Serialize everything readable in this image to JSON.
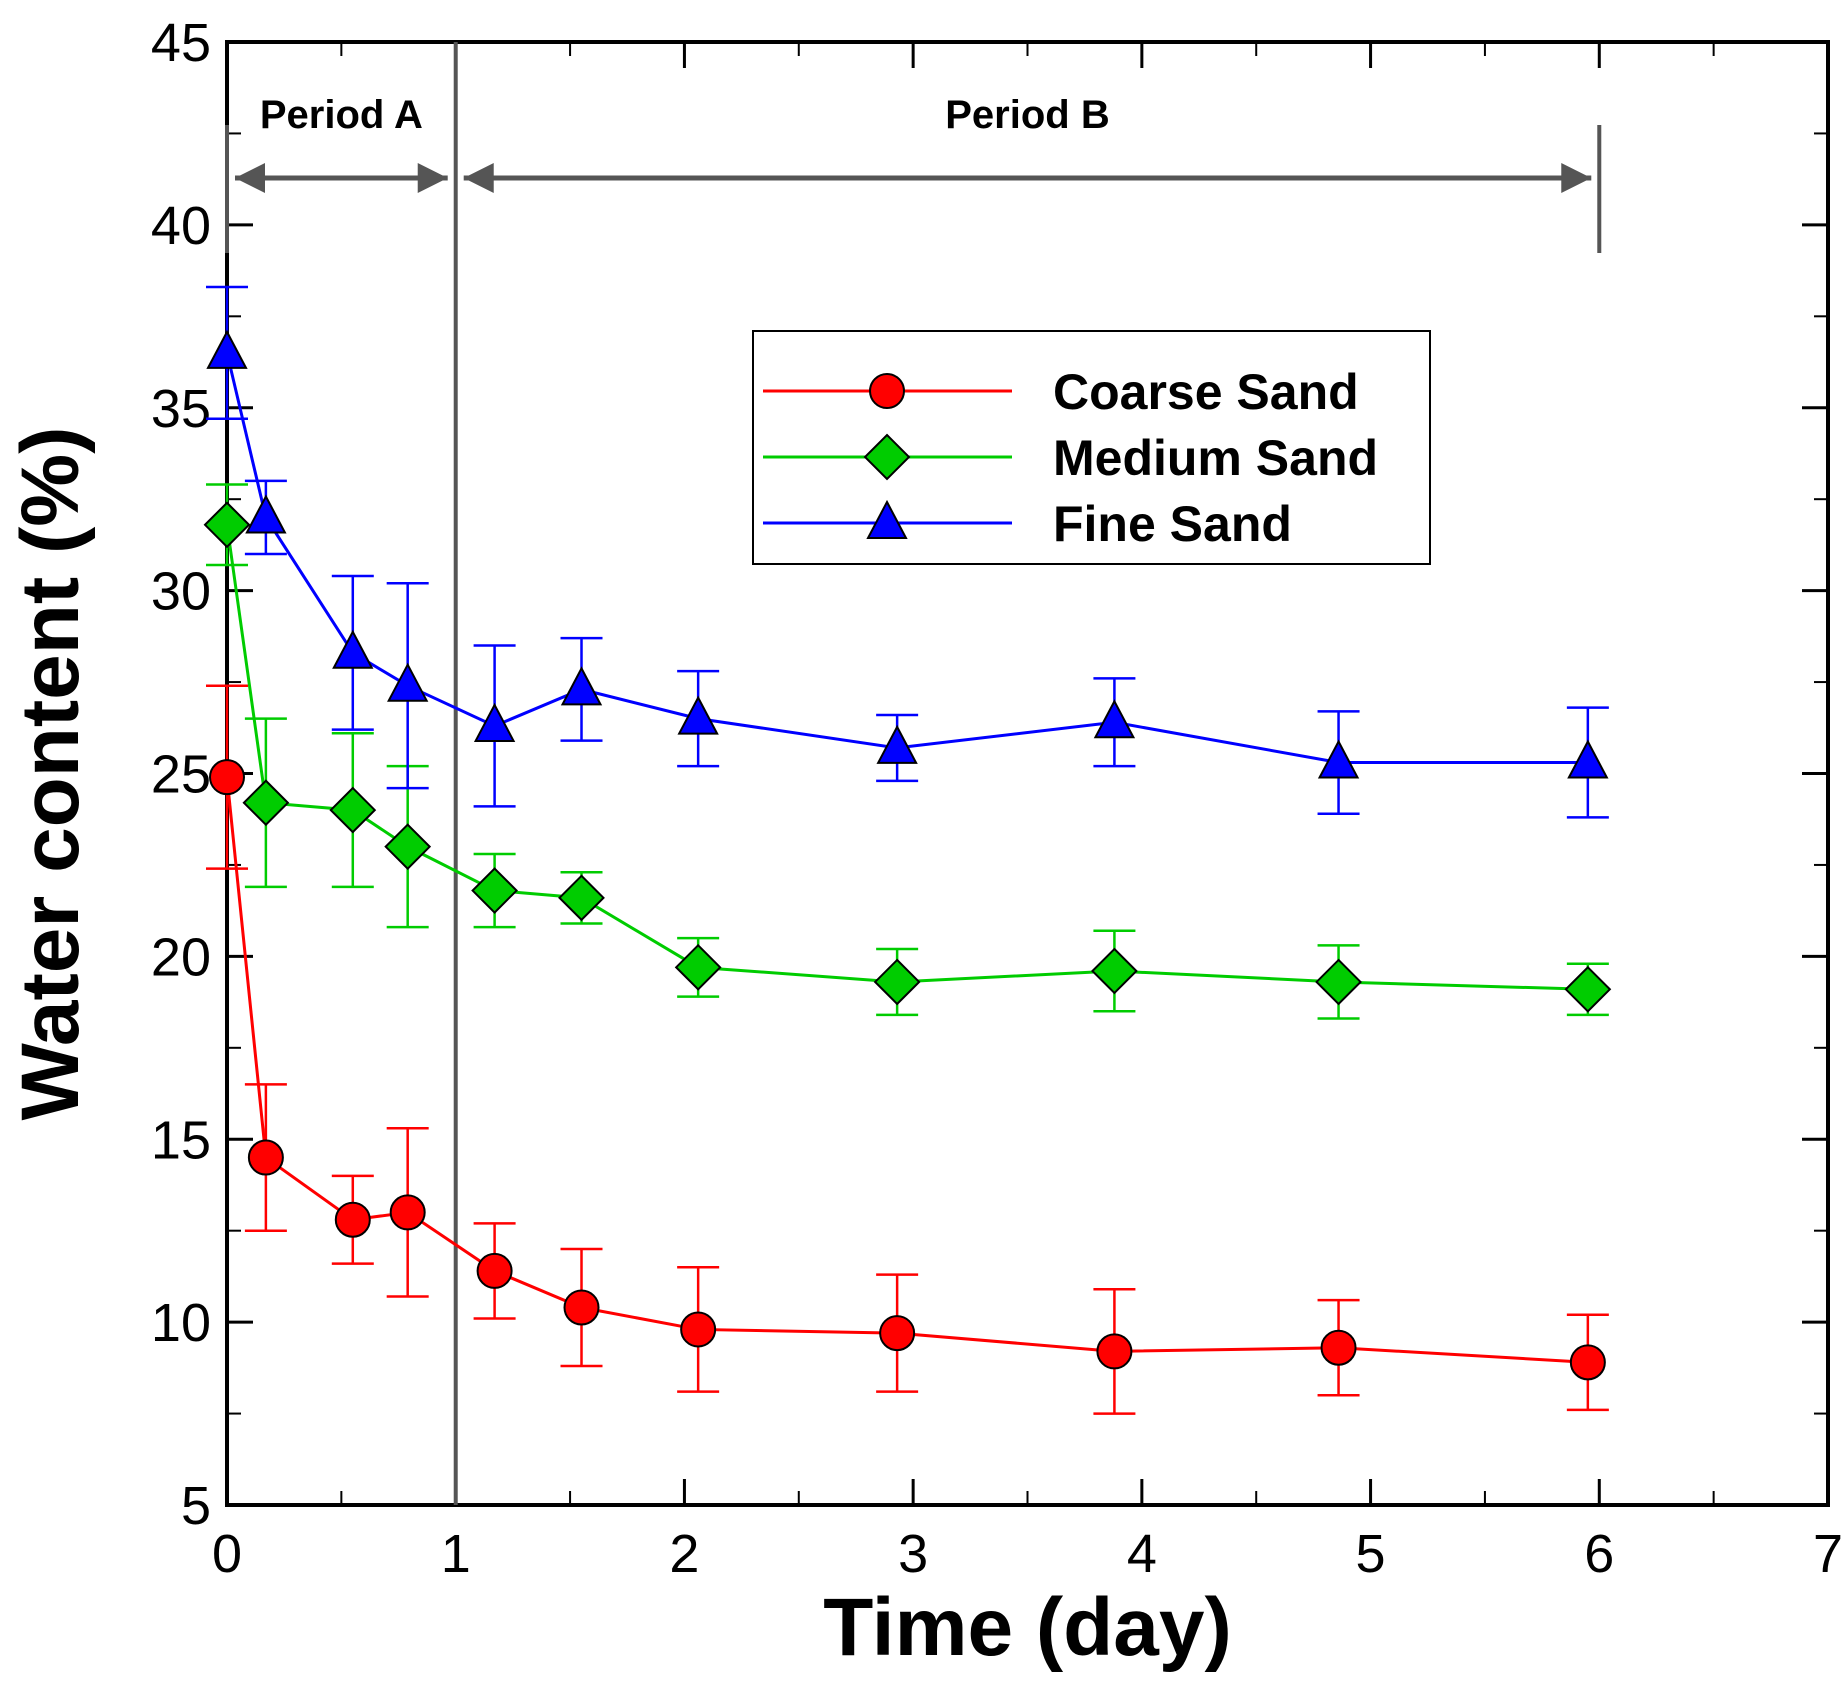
{
  "chart_data": {
    "type": "line",
    "title": "",
    "xlabel": "Time (day)",
    "ylabel": "Water content (%)",
    "xlim": [
      0,
      7
    ],
    "ylim": [
      5,
      45
    ],
    "xticks": [
      0,
      1,
      2,
      3,
      4,
      5,
      6,
      7
    ],
    "yticks": [
      5,
      10,
      15,
      20,
      25,
      30,
      35,
      40,
      45
    ],
    "grid": false,
    "legend_position": "upper-right",
    "periods": [
      {
        "label": "Period A",
        "start": 0,
        "end": 1
      },
      {
        "label": "Period B",
        "start": 1,
        "end": 6
      }
    ],
    "divider_x": 1,
    "series": [
      {
        "name": "Coarse Sand",
        "color": "#ff0000",
        "marker": "circle",
        "points": [
          {
            "x": 0,
            "y": 24.9,
            "err": 2.5
          },
          {
            "x": 0.17,
            "y": 14.5,
            "err": 2.0
          },
          {
            "x": 0.55,
            "y": 12.8,
            "err": 1.2
          },
          {
            "x": 0.79,
            "y": 13.0,
            "err": 2.3
          },
          {
            "x": 1.17,
            "y": 11.4,
            "err": 1.3
          },
          {
            "x": 1.55,
            "y": 10.4,
            "err": 1.6
          },
          {
            "x": 2.06,
            "y": 9.8,
            "err": 1.7
          },
          {
            "x": 2.93,
            "y": 9.7,
            "err": 1.6
          },
          {
            "x": 3.88,
            "y": 9.2,
            "err": 1.7
          },
          {
            "x": 4.86,
            "y": 9.3,
            "err": 1.3
          },
          {
            "x": 5.95,
            "y": 8.9,
            "err": 1.3
          }
        ]
      },
      {
        "name": "Medium Sand",
        "color": "#00cc00",
        "marker": "diamond",
        "points": [
          {
            "x": 0,
            "y": 31.8,
            "err": 1.1
          },
          {
            "x": 0.17,
            "y": 24.2,
            "err": 2.3
          },
          {
            "x": 0.55,
            "y": 24.0,
            "err": 2.1
          },
          {
            "x": 0.79,
            "y": 23.0,
            "err": 2.2
          },
          {
            "x": 1.17,
            "y": 21.8,
            "err": 1.0
          },
          {
            "x": 1.55,
            "y": 21.6,
            "err": 0.7
          },
          {
            "x": 2.06,
            "y": 19.7,
            "err": 0.8
          },
          {
            "x": 2.93,
            "y": 19.3,
            "err": 0.9
          },
          {
            "x": 3.88,
            "y": 19.6,
            "err": 1.1
          },
          {
            "x": 4.86,
            "y": 19.3,
            "err": 1.0
          },
          {
            "x": 5.95,
            "y": 19.1,
            "err": 0.7
          }
        ]
      },
      {
        "name": "Fine Sand",
        "color": "#0000ff",
        "marker": "triangle",
        "points": [
          {
            "x": 0,
            "y": 36.5,
            "err": 1.8
          },
          {
            "x": 0.17,
            "y": 32.0,
            "err": 1.0
          },
          {
            "x": 0.55,
            "y": 28.3,
            "err": 2.1
          },
          {
            "x": 0.79,
            "y": 27.4,
            "err": 2.8
          },
          {
            "x": 1.17,
            "y": 26.3,
            "err": 2.2
          },
          {
            "x": 1.55,
            "y": 27.3,
            "err": 1.4
          },
          {
            "x": 2.06,
            "y": 26.5,
            "err": 1.3
          },
          {
            "x": 2.93,
            "y": 25.7,
            "err": 0.9
          },
          {
            "x": 3.88,
            "y": 26.4,
            "err": 1.2
          },
          {
            "x": 4.86,
            "y": 25.3,
            "err": 1.4
          },
          {
            "x": 5.95,
            "y": 25.3,
            "err": 1.5
          }
        ]
      }
    ]
  }
}
